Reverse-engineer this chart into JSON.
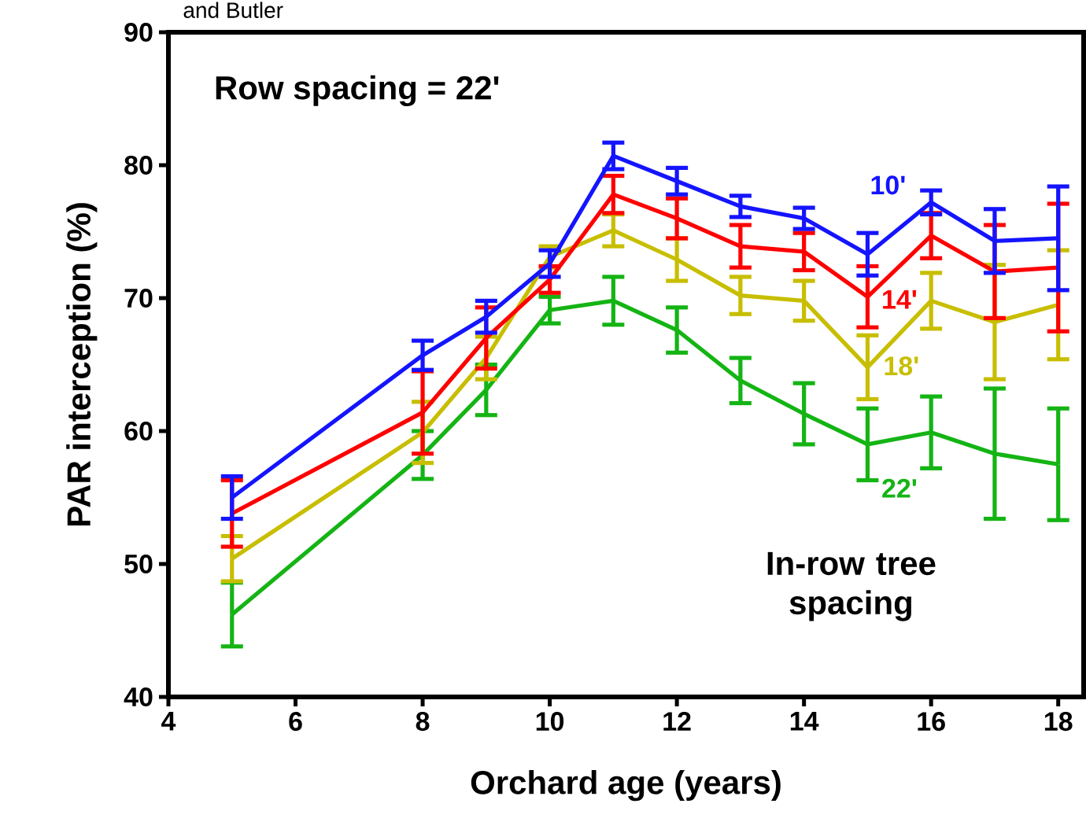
{
  "chart_data": {
    "type": "line",
    "annotations": [
      "and Butler",
      "Row spacing = 22'",
      "In-row tree spacing"
    ],
    "xlabel": "Orchard age (years)",
    "ylabel": "PAR interception (%)",
    "xlim": [
      4,
      18.4
    ],
    "xticks": [
      4,
      6,
      8,
      10,
      12,
      14,
      16,
      18
    ],
    "ylim": [
      40,
      90
    ],
    "yticks": [
      40,
      50,
      60,
      70,
      80,
      90
    ],
    "x": [
      5,
      8,
      9,
      10,
      11,
      12,
      13,
      14,
      15,
      16,
      17,
      18
    ],
    "series": [
      {
        "name": "10'",
        "color": "#1414ff",
        "values": [
          55.0,
          65.7,
          68.6,
          72.6,
          80.7,
          78.8,
          76.9,
          76.0,
          73.3,
          77.2,
          74.3,
          74.5
        ],
        "errors": [
          1.6,
          1.1,
          1.2,
          1.0,
          1.0,
          1.0,
          0.8,
          0.8,
          1.6,
          0.9,
          2.4,
          3.9
        ]
      },
      {
        "name": "14'",
        "color": "#ff0000",
        "values": [
          53.8,
          61.4,
          67.0,
          71.4,
          77.8,
          76.0,
          73.9,
          73.5,
          70.1,
          74.7,
          72.0,
          72.3
        ],
        "errors": [
          2.5,
          3.1,
          2.3,
          1.0,
          1.4,
          1.5,
          1.6,
          1.4,
          2.3,
          1.7,
          3.5,
          4.8
        ]
      },
      {
        "name": "18'",
        "color": "#c8be00",
        "values": [
          50.4,
          59.9,
          65.5,
          73.1,
          75.1,
          72.9,
          70.2,
          69.8,
          64.8,
          69.8,
          68.2,
          69.5
        ],
        "errors": [
          1.7,
          2.3,
          1.6,
          0.8,
          1.2,
          1.6,
          1.4,
          1.5,
          2.4,
          2.1,
          4.3,
          4.1
        ]
      },
      {
        "name": "22'",
        "color": "#14b414",
        "values": [
          46.2,
          58.2,
          63.1,
          69.1,
          69.8,
          67.6,
          63.8,
          61.3,
          59.0,
          59.9,
          58.3,
          57.5
        ],
        "errors": [
          2.4,
          1.8,
          1.9,
          1.0,
          1.8,
          1.7,
          1.7,
          2.3,
          2.7,
          2.7,
          4.9,
          4.2
        ]
      }
    ]
  }
}
